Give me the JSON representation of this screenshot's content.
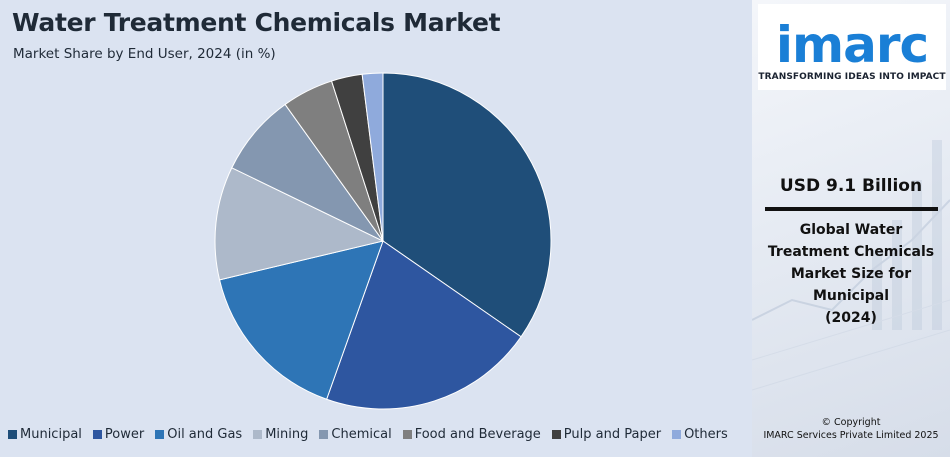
{
  "header": {
    "title": "Water Treatment Chemicals Market",
    "subtitle": "Market Share by End User, 2024 (in %)"
  },
  "chart_data": {
    "type": "pie",
    "title": "Water Treatment Chemicals Market",
    "subtitle": "Market Share by End User, 2024 (in %)",
    "categories": [
      "Municipal",
      "Power",
      "Oil and Gas",
      "Mining",
      "Chemical",
      "Food and Beverage",
      "Pulp and Paper",
      "Others"
    ],
    "values": [
      35,
      21,
      16,
      11,
      8,
      5,
      3,
      2
    ],
    "colors": [
      "#1f4e79",
      "#2e56a0",
      "#2e75b6",
      "#adb9ca",
      "#8497b0",
      "#7f7f7f",
      "#404040",
      "#8faadc"
    ],
    "legend_position": "bottom",
    "start": "top, clockwise"
  },
  "sidebar": {
    "logo_text": "imarc",
    "tagline": "TRANSFORMING IDEAS INTO IMPACT",
    "market_size": "USD 9.1 Billion",
    "description_lines": [
      "Global Water",
      "Treatment Chemicals",
      "Market Size for",
      "Municipal",
      "(2024)"
    ],
    "copyright_lines": [
      "© Copyright",
      "IMARC Services Private Limited 2025"
    ],
    "brand_color": "#1a7fd6"
  }
}
